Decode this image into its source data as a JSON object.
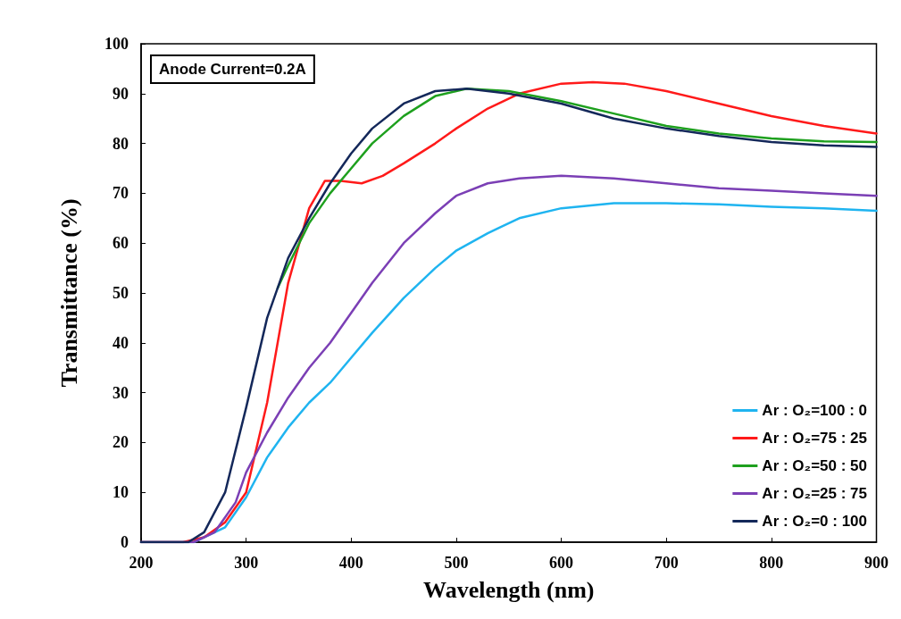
{
  "chart_data": {
    "type": "line",
    "xlabel": "Wavelength (nm)",
    "ylabel": "Transmittance (%)",
    "annotations": [
      "Anode Current=0.2A"
    ],
    "xlim": [
      200,
      900
    ],
    "xticks": [
      200,
      300,
      400,
      500,
      600,
      700,
      800,
      900
    ],
    "ylim": [
      0,
      100
    ],
    "yticks": [
      0,
      10,
      20,
      30,
      40,
      50,
      60,
      70,
      80,
      90,
      100
    ],
    "grid": false,
    "legend": "bottom right",
    "marker": "none",
    "line_style": "solid",
    "series": [
      {
        "name": "Ar : O₂=100 : 0",
        "color": "#1fb4f0",
        "x": [
          200,
          250,
          280,
          300,
          320,
          340,
          360,
          380,
          400,
          420,
          450,
          480,
          500,
          530,
          560,
          600,
          650,
          700,
          750,
          800,
          850,
          900
        ],
        "values": [
          0,
          0,
          3,
          9,
          17,
          23,
          28,
          32,
          37,
          42,
          49,
          55,
          58.5,
          62,
          65,
          67,
          68,
          68,
          67.8,
          67.3,
          67,
          66.5
        ]
      },
      {
        "name": "Ar : O₂=75 : 25",
        "color": "#ff1a1a",
        "x": [
          200,
          240,
          260,
          280,
          300,
          320,
          340,
          360,
          375,
          390,
          410,
          430,
          450,
          480,
          500,
          530,
          560,
          600,
          630,
          660,
          700,
          750,
          800,
          850,
          900
        ],
        "values": [
          0,
          0,
          1,
          4,
          10,
          28,
          52,
          67,
          72.5,
          72.5,
          72,
          73.5,
          76,
          80,
          83,
          87,
          90,
          92,
          92.3,
          92,
          90.5,
          88,
          85.5,
          83.5,
          82
        ]
      },
      {
        "name": "Ar : O₂=50 : 50",
        "color": "#1ea01e",
        "x": [
          330,
          340,
          360,
          380,
          400,
          420,
          450,
          480,
          510,
          550,
          600,
          650,
          700,
          750,
          800,
          850,
          900
        ],
        "values": [
          51,
          55.5,
          64,
          70,
          75,
          80,
          85.5,
          89.5,
          91,
          90.5,
          88.5,
          86,
          83.5,
          82,
          81,
          80.4,
          80.3
        ]
      },
      {
        "name": "Ar : O₂=25 : 75",
        "color": "#7b3fb5",
        "x": [
          200,
          250,
          270,
          290,
          300,
          320,
          340,
          360,
          380,
          400,
          420,
          450,
          480,
          500,
          530,
          560,
          600,
          650,
          700,
          750,
          800,
          850,
          900
        ],
        "values": [
          0,
          0,
          2,
          8,
          14,
          22,
          29,
          35,
          40,
          46,
          52,
          60,
          66,
          69.5,
          72,
          73,
          73.5,
          73,
          72,
          71,
          70.5,
          70,
          69.5
        ]
      },
      {
        "name": "Ar : O₂=0 : 100",
        "color": "#14285a",
        "x": [
          200,
          245,
          260,
          280,
          300,
          320,
          340,
          360,
          380,
          400,
          420,
          450,
          480,
          510,
          550,
          600,
          650,
          700,
          750,
          800,
          850,
          900
        ],
        "values": [
          0,
          0,
          2,
          10,
          27,
          45,
          57,
          65,
          72,
          78,
          83,
          88,
          90.5,
          91,
          90,
          88,
          85,
          83,
          81.5,
          80.3,
          79.6,
          79.3
        ]
      }
    ]
  }
}
